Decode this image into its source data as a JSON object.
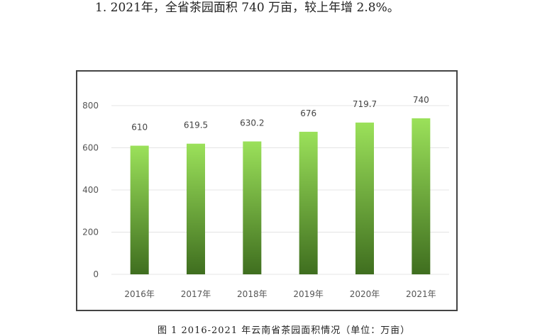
{
  "document": {
    "top_text": "1. 2021年，全省茶园面积 740 万亩，较上年增 2.8%。",
    "caption": "图 1  2016-2021 年云南省茶园面积情况（单位：万亩）"
  },
  "chart_data": {
    "type": "bar",
    "title": "",
    "xlabel": "",
    "ylabel": "",
    "categories": [
      "2016年",
      "2017年",
      "2018年",
      "2019年",
      "2020年",
      "2021年"
    ],
    "values": [
      610,
      619.5,
      630.2,
      676,
      719.7,
      740
    ],
    "value_labels": [
      "610",
      "619.5",
      "630.2",
      "676",
      "719.7",
      "740"
    ],
    "ylim": [
      0,
      800
    ],
    "yticks": [
      0,
      200,
      400,
      600,
      800
    ],
    "ytick_labels": [
      "0",
      "200",
      "400",
      "600",
      "800"
    ],
    "grid": true,
    "legend": "none",
    "colors": {
      "bar_top": "#9be15a",
      "bar_bottom": "#3f6e1f",
      "grid": "#e4e4e4"
    }
  }
}
